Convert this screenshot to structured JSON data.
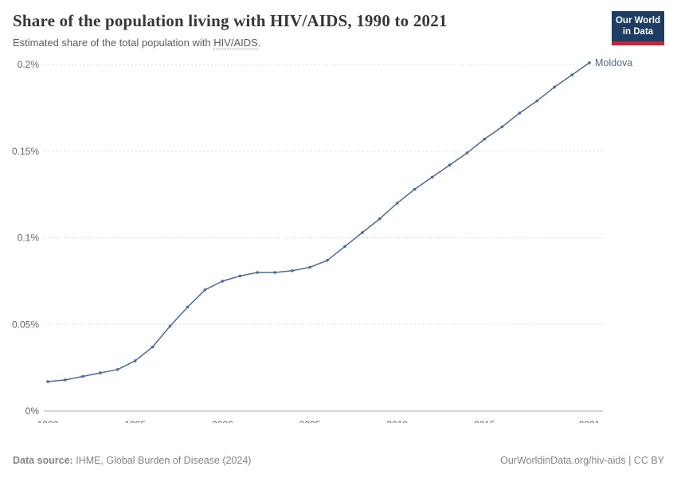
{
  "header": {
    "title": "Share of the population living with HIV/AIDS, 1990 to 2021",
    "subtitle_prefix": "Estimated share of the total population with ",
    "subtitle_link": "HIV/AIDS",
    "subtitle_suffix": ".",
    "logo_line1": "Our World",
    "logo_line2": "in Data",
    "logo_colors": {
      "background": "#1d3d63",
      "accent": "#c0273d"
    }
  },
  "chart_data": {
    "type": "line",
    "title": "Share of the population living with HIV/AIDS, 1990 to 2021",
    "subtitle": "Estimated share of the total population with HIV/AIDS.",
    "xlabel": "",
    "ylabel": "",
    "xlim": [
      1990,
      2021
    ],
    "ylim": [
      0,
      0.2
    ],
    "grid": "dashed-horizontal",
    "legend_position": "end-of-line-label",
    "x_ticks": [
      1990,
      1995,
      2000,
      2005,
      2010,
      2015,
      2021
    ],
    "y_ticks": [
      {
        "value": 0,
        "label": "0%"
      },
      {
        "value": 0.05,
        "label": "0.05%"
      },
      {
        "value": 0.1,
        "label": "0.1%"
      },
      {
        "value": 0.15,
        "label": "0.15%"
      },
      {
        "value": 0.2,
        "label": "0.2%"
      }
    ],
    "x": [
      1990,
      1991,
      1992,
      1993,
      1994,
      1995,
      1996,
      1997,
      1998,
      1999,
      2000,
      2001,
      2002,
      2003,
      2004,
      2005,
      2006,
      2007,
      2008,
      2009,
      2010,
      2011,
      2012,
      2013,
      2014,
      2015,
      2016,
      2017,
      2018,
      2019,
      2020,
      2021
    ],
    "series": [
      {
        "name": "Moldova",
        "color": "#4c6a9c",
        "values": [
          0.017,
          0.018,
          0.02,
          0.022,
          0.024,
          0.029,
          0.037,
          0.049,
          0.06,
          0.07,
          0.075,
          0.078,
          0.08,
          0.08,
          0.081,
          0.083,
          0.087,
          0.095,
          0.103,
          0.111,
          0.12,
          0.128,
          0.135,
          0.142,
          0.149,
          0.157,
          0.164,
          0.172,
          0.179,
          0.187,
          0.194,
          0.201
        ]
      }
    ],
    "colors": {
      "grid": "#dcdcdc",
      "baseline": "#a8a8a8",
      "axis_text": "#666666"
    }
  },
  "footer": {
    "source_label": "Data source:",
    "source_text": " IHME, Global Burden of Disease (2024)",
    "link_text": "OurWorldinData.org/hiv-aids | CC BY"
  }
}
